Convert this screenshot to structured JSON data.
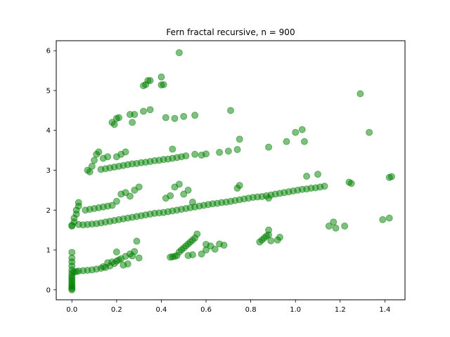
{
  "chart_data": {
    "type": "scatter",
    "title": "Fern fractal recursive, n = 900",
    "xlabel": "",
    "ylabel": "",
    "xlim": [
      -0.07,
      1.49
    ],
    "ylim": [
      -0.25,
      6.25
    ],
    "x_ticks": [
      0.0,
      0.2,
      0.4,
      0.6,
      0.8,
      1.0,
      1.2,
      1.4
    ],
    "x_tick_labels": [
      "0.0",
      "0.2",
      "0.4",
      "0.6",
      "0.8",
      "1.0",
      "1.2",
      "1.4"
    ],
    "y_ticks": [
      0,
      1,
      2,
      3,
      4,
      5,
      6
    ],
    "y_tick_labels": [
      "0",
      "1",
      "2",
      "3",
      "4",
      "5",
      "6"
    ],
    "grid": false,
    "legend": "none",
    "marker_color": "#008000",
    "marker_alpha": 0.5,
    "series": [
      {
        "points": [
          [
            0.0,
            0.0
          ],
          [
            0.0,
            0.03
          ],
          [
            0.0,
            0.07
          ],
          [
            0.0,
            0.1
          ],
          [
            0.0,
            0.15
          ],
          [
            0.0,
            0.2
          ],
          [
            0.0,
            0.25
          ],
          [
            0.0,
            0.3
          ],
          [
            0.0,
            0.35
          ],
          [
            0.0,
            0.42
          ],
          [
            0.0,
            0.5
          ],
          [
            0.0,
            0.6
          ],
          [
            0.0,
            0.7
          ],
          [
            0.0,
            0.8
          ],
          [
            0.0,
            0.94
          ],
          [
            0.01,
            0.45
          ],
          [
            0.02,
            0.46
          ],
          [
            0.03,
            0.47
          ],
          [
            0.05,
            0.48
          ],
          [
            0.07,
            0.49
          ],
          [
            0.09,
            0.5
          ],
          [
            0.11,
            0.52
          ],
          [
            0.13,
            0.54
          ],
          [
            0.15,
            0.56
          ],
          [
            0.17,
            0.6
          ],
          [
            0.19,
            0.66
          ],
          [
            0.2,
            0.72
          ],
          [
            0.22,
            0.78
          ],
          [
            0.24,
            0.84
          ],
          [
            0.26,
            0.9
          ],
          [
            0.28,
            0.96
          ],
          [
            0.3,
            0.8
          ],
          [
            0.2,
            0.95
          ],
          [
            0.25,
            0.65
          ],
          [
            0.23,
            0.62
          ],
          [
            0.18,
            0.7
          ],
          [
            0.14,
            0.58
          ],
          [
            0.27,
            0.85
          ],
          [
            0.29,
            1.22
          ],
          [
            0.16,
            0.68
          ],
          [
            0.21,
            0.75
          ],
          [
            0.0,
            1.6
          ],
          [
            0.0,
            1.62
          ],
          [
            0.01,
            1.7
          ],
          [
            0.01,
            1.8
          ],
          [
            0.02,
            1.9
          ],
          [
            0.02,
            2.0
          ],
          [
            0.03,
            2.1
          ],
          [
            0.03,
            2.19
          ],
          [
            0.03,
            1.64
          ],
          [
            0.05,
            1.63
          ],
          [
            0.07,
            1.64
          ],
          [
            0.09,
            1.65
          ],
          [
            0.11,
            1.66
          ],
          [
            0.13,
            1.68
          ],
          [
            0.15,
            1.7
          ],
          [
            0.17,
            1.72
          ],
          [
            0.19,
            1.74
          ],
          [
            0.21,
            1.76
          ],
          [
            0.23,
            1.78
          ],
          [
            0.25,
            1.8
          ],
          [
            0.27,
            1.82
          ],
          [
            0.29,
            1.84
          ],
          [
            0.31,
            1.86
          ],
          [
            0.33,
            1.88
          ],
          [
            0.35,
            1.9
          ],
          [
            0.37,
            1.92
          ],
          [
            0.39,
            1.93
          ],
          [
            0.41,
            1.94
          ],
          [
            0.43,
            1.96
          ],
          [
            0.45,
            1.98
          ],
          [
            0.47,
            2.0
          ],
          [
            0.49,
            2.02
          ],
          [
            0.51,
            2.04
          ],
          [
            0.53,
            2.06
          ],
          [
            0.55,
            2.08
          ],
          [
            0.57,
            2.1
          ],
          [
            0.59,
            2.12
          ],
          [
            0.61,
            2.14
          ],
          [
            0.63,
            2.16
          ],
          [
            0.65,
            2.17
          ],
          [
            0.67,
            2.19
          ],
          [
            0.69,
            2.2
          ],
          [
            0.71,
            2.22
          ],
          [
            0.73,
            2.24
          ],
          [
            0.75,
            2.26
          ],
          [
            0.77,
            2.28
          ],
          [
            0.79,
            2.3
          ],
          [
            0.81,
            2.32
          ],
          [
            0.83,
            2.33
          ],
          [
            0.85,
            2.34
          ],
          [
            0.87,
            2.36
          ],
          [
            0.89,
            2.38
          ],
          [
            0.91,
            2.4
          ],
          [
            0.93,
            2.42
          ],
          [
            0.95,
            2.44
          ],
          [
            0.97,
            2.46
          ],
          [
            0.99,
            2.48
          ],
          [
            1.01,
            2.5
          ],
          [
            1.03,
            2.52
          ],
          [
            1.05,
            2.53
          ],
          [
            1.07,
            2.55
          ],
          [
            1.09,
            2.56
          ],
          [
            1.11,
            2.58
          ],
          [
            1.13,
            2.6
          ],
          [
            0.06,
            2.0
          ],
          [
            0.08,
            2.02
          ],
          [
            0.1,
            2.04
          ],
          [
            0.12,
            2.06
          ],
          [
            0.14,
            2.08
          ],
          [
            0.16,
            2.1
          ],
          [
            0.18,
            2.12
          ],
          [
            0.2,
            2.22
          ],
          [
            0.22,
            2.4
          ],
          [
            0.24,
            2.44
          ],
          [
            0.26,
            2.35
          ],
          [
            0.28,
            2.5
          ],
          [
            0.3,
            2.58
          ],
          [
            0.42,
            2.3
          ],
          [
            0.44,
            2.36
          ],
          [
            0.46,
            2.58
          ],
          [
            0.48,
            2.65
          ],
          [
            0.5,
            2.4
          ],
          [
            0.52,
            2.5
          ],
          [
            0.54,
            2.2
          ],
          [
            0.74,
            2.55
          ],
          [
            0.75,
            2.62
          ],
          [
            0.88,
            2.3
          ],
          [
            1.05,
            2.85
          ],
          [
            1.1,
            2.9
          ],
          [
            1.15,
            1.6
          ],
          [
            1.17,
            1.7
          ],
          [
            1.18,
            1.55
          ],
          [
            1.22,
            1.6
          ],
          [
            1.24,
            2.7
          ],
          [
            1.25,
            2.67
          ],
          [
            1.39,
            1.76
          ],
          [
            1.42,
            1.8
          ],
          [
            1.42,
            2.82
          ],
          [
            1.43,
            2.84
          ],
          [
            0.07,
            3.0
          ],
          [
            0.08,
            2.96
          ],
          [
            0.09,
            3.1
          ],
          [
            0.1,
            3.25
          ],
          [
            0.11,
            3.4
          ],
          [
            0.12,
            3.46
          ],
          [
            0.13,
            3.02
          ],
          [
            0.15,
            3.04
          ],
          [
            0.17,
            3.06
          ],
          [
            0.19,
            3.08
          ],
          [
            0.21,
            3.1
          ],
          [
            0.23,
            3.12
          ],
          [
            0.25,
            3.14
          ],
          [
            0.27,
            3.16
          ],
          [
            0.29,
            3.17
          ],
          [
            0.31,
            3.19
          ],
          [
            0.33,
            3.2
          ],
          [
            0.35,
            3.22
          ],
          [
            0.37,
            3.24
          ],
          [
            0.39,
            3.25
          ],
          [
            0.41,
            3.27
          ],
          [
            0.43,
            3.28
          ],
          [
            0.45,
            3.3
          ],
          [
            0.47,
            3.32
          ],
          [
            0.49,
            3.34
          ],
          [
            0.51,
            3.36
          ],
          [
            0.55,
            3.4
          ],
          [
            0.58,
            3.38
          ],
          [
            0.6,
            3.41
          ],
          [
            0.66,
            3.45
          ],
          [
            0.7,
            3.48
          ],
          [
            0.74,
            3.52
          ],
          [
            0.75,
            3.78
          ],
          [
            0.14,
            3.3
          ],
          [
            0.16,
            3.34
          ],
          [
            0.2,
            3.34
          ],
          [
            0.22,
            3.4
          ],
          [
            0.24,
            3.46
          ],
          [
            0.45,
            3.53
          ],
          [
            0.88,
            3.58
          ],
          [
            0.96,
            3.72
          ],
          [
            1.0,
            3.95
          ],
          [
            1.03,
            4.02
          ],
          [
            1.04,
            3.72
          ],
          [
            1.33,
            3.95
          ],
          [
            1.29,
            4.92
          ],
          [
            0.18,
            4.2
          ],
          [
            0.19,
            4.15
          ],
          [
            0.2,
            4.3
          ],
          [
            0.21,
            4.32
          ],
          [
            0.26,
            4.4
          ],
          [
            0.27,
            4.2
          ],
          [
            0.28,
            4.4
          ],
          [
            0.32,
            4.48
          ],
          [
            0.35,
            4.52
          ],
          [
            0.42,
            4.32
          ],
          [
            0.46,
            4.3
          ],
          [
            0.5,
            4.35
          ],
          [
            0.55,
            4.38
          ],
          [
            0.71,
            4.5
          ],
          [
            0.32,
            5.12
          ],
          [
            0.33,
            5.15
          ],
          [
            0.34,
            5.25
          ],
          [
            0.35,
            5.25
          ],
          [
            0.4,
            5.14
          ],
          [
            0.41,
            5.15
          ],
          [
            0.4,
            5.34
          ],
          [
            0.48,
            5.95
          ],
          [
            0.44,
            0.82
          ],
          [
            0.45,
            0.83
          ],
          [
            0.46,
            0.84
          ],
          [
            0.47,
            0.86
          ],
          [
            0.48,
            0.95
          ],
          [
            0.49,
            1.0
          ],
          [
            0.5,
            1.05
          ],
          [
            0.51,
            1.1
          ],
          [
            0.52,
            1.15
          ],
          [
            0.53,
            1.2
          ],
          [
            0.54,
            1.25
          ],
          [
            0.55,
            1.3
          ],
          [
            0.56,
            1.4
          ],
          [
            0.52,
            0.86
          ],
          [
            0.54,
            0.88
          ],
          [
            0.58,
            0.9
          ],
          [
            0.6,
            1.0
          ],
          [
            0.62,
            1.1
          ],
          [
            0.64,
            1.02
          ],
          [
            0.66,
            1.15
          ],
          [
            0.68,
            1.12
          ],
          [
            0.6,
            1.14
          ],
          [
            0.84,
            1.2
          ],
          [
            0.85,
            1.25
          ],
          [
            0.86,
            1.3
          ],
          [
            0.87,
            1.35
          ],
          [
            0.88,
            1.38
          ],
          [
            0.88,
            1.5
          ],
          [
            0.89,
            1.23
          ],
          [
            0.92,
            1.25
          ],
          [
            0.93,
            1.32
          ]
        ]
      }
    ]
  }
}
